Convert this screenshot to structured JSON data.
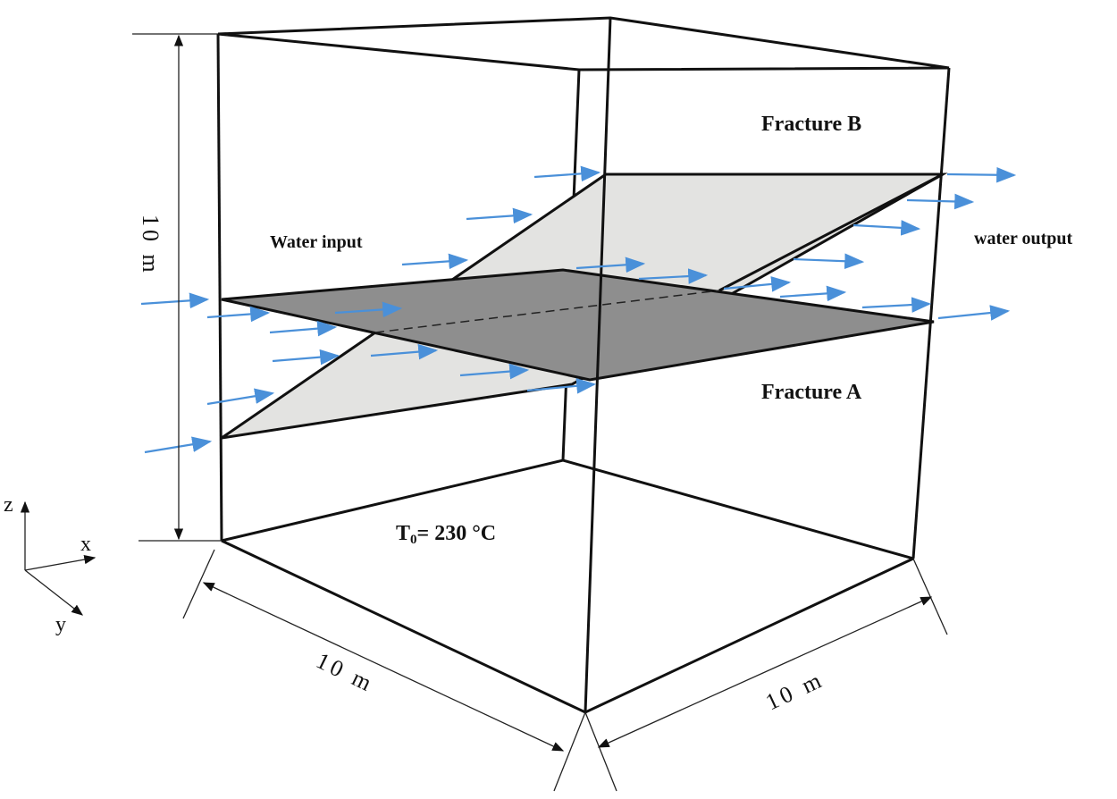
{
  "labels": {
    "fracture_b": "Fracture B",
    "fracture_a": "Fracture A",
    "water_input": "Water input",
    "water_output": "water output",
    "temperature": {
      "symbol": "T",
      "subscript": "0",
      "rest": "= 230 °C"
    }
  },
  "dimensions": {
    "height": "10 m",
    "width": "10 m",
    "depth": "10 m"
  },
  "axes": {
    "z": "z",
    "x": "x",
    "y": "y"
  }
}
